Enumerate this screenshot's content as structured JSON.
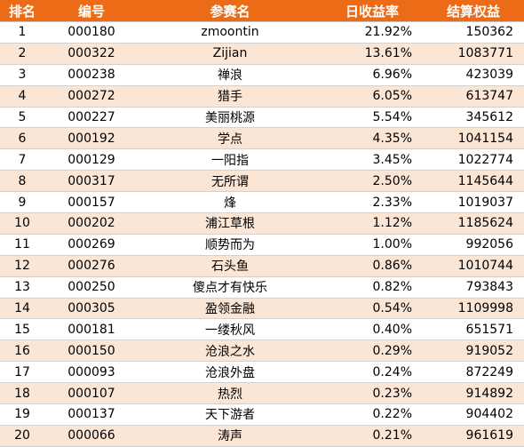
{
  "headers": {
    "rank": "排名",
    "code": "编号",
    "name": "参赛名",
    "daily_return": "日收益率",
    "equity": "结算权益"
  },
  "rows": [
    {
      "rank": "1",
      "code": "000180",
      "name": "zmoontin",
      "ret": "21.92%",
      "equity": "150362"
    },
    {
      "rank": "2",
      "code": "000322",
      "name": "Zijian",
      "ret": "13.61%",
      "equity": "1083771"
    },
    {
      "rank": "3",
      "code": "000238",
      "name": "禅浪",
      "ret": "6.96%",
      "equity": "423039"
    },
    {
      "rank": "4",
      "code": "000272",
      "name": "猎手",
      "ret": "6.05%",
      "equity": "613747"
    },
    {
      "rank": "5",
      "code": "000227",
      "name": "美丽桃源",
      "ret": "5.54%",
      "equity": "345612"
    },
    {
      "rank": "6",
      "code": "000192",
      "name": "学点",
      "ret": "4.35%",
      "equity": "1041154"
    },
    {
      "rank": "7",
      "code": "000129",
      "name": "一阳指",
      "ret": "3.45%",
      "equity": "1022774"
    },
    {
      "rank": "8",
      "code": "000317",
      "name": "无所谓",
      "ret": "2.50%",
      "equity": "1145644"
    },
    {
      "rank": "9",
      "code": "000157",
      "name": "烽",
      "ret": "2.33%",
      "equity": "1019037"
    },
    {
      "rank": "10",
      "code": "000202",
      "name": "浦江草根",
      "ret": "1.12%",
      "equity": "1185624"
    },
    {
      "rank": "11",
      "code": "000269",
      "name": "顺势而为",
      "ret": "1.00%",
      "equity": "992056"
    },
    {
      "rank": "12",
      "code": "000276",
      "name": "石头鱼",
      "ret": "0.86%",
      "equity": "1010744"
    },
    {
      "rank": "13",
      "code": "000250",
      "name": "傻点才有快乐",
      "ret": "0.82%",
      "equity": "793843"
    },
    {
      "rank": "14",
      "code": "000305",
      "name": "盈领金融",
      "ret": "0.54%",
      "equity": "1109998"
    },
    {
      "rank": "15",
      "code": "000181",
      "name": "一缕秋风",
      "ret": "0.40%",
      "equity": "651571"
    },
    {
      "rank": "16",
      "code": "000150",
      "name": "沧浪之水",
      "ret": "0.29%",
      "equity": "919052"
    },
    {
      "rank": "17",
      "code": "000093",
      "name": "沧浪外盘",
      "ret": "0.24%",
      "equity": "872249"
    },
    {
      "rank": "18",
      "code": "000107",
      "name": "热烈",
      "ret": "0.23%",
      "equity": "914892"
    },
    {
      "rank": "19",
      "code": "000137",
      "name": "天下游者",
      "ret": "0.22%",
      "equity": "904402"
    },
    {
      "rank": "20",
      "code": "000066",
      "name": "涛声",
      "ret": "0.21%",
      "equity": "961619"
    }
  ],
  "colors": {
    "header_bg": "#ec6b17",
    "header_text": "#ffffff",
    "row_alt_bg": "#fbe5d5",
    "row_bg": "#ffffff"
  }
}
